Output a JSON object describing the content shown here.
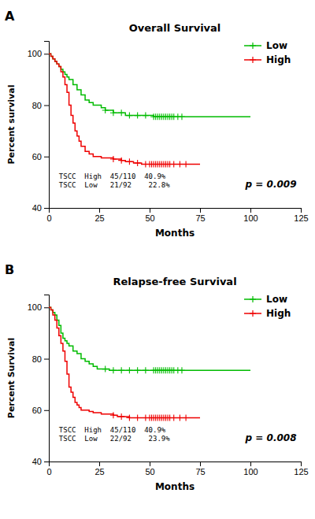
{
  "chart_data": [
    {
      "type": "step",
      "title": "Overall Survival",
      "xlabel": "Months",
      "ylabel": "Percent survival",
      "xlim": [
        0,
        125
      ],
      "ylim": [
        40,
        105
      ],
      "xticks": [
        0,
        25,
        50,
        75,
        100,
        125
      ],
      "yticks": [
        40,
        60,
        80,
        100
      ],
      "legend": "upper right",
      "annotations": [
        "A",
        "TSCC  High  45/110  40.9%",
        "TSCC  Low   21/92    22.8%",
        "p = 0.009"
      ],
      "series": [
        {
          "name": "Low",
          "color": "#00bb00",
          "marker": "+",
          "x": [
            0,
            1,
            2,
            3,
            4,
            5,
            6,
            7,
            8,
            9,
            10,
            12,
            14,
            16,
            18,
            20,
            22,
            24,
            26,
            28,
            30,
            32,
            34,
            36,
            38,
            40,
            42,
            44,
            46,
            48,
            50,
            52,
            54,
            56,
            58,
            60,
            62,
            65,
            68,
            70,
            75,
            100
          ],
          "values": [
            100,
            99,
            98,
            97,
            96,
            95,
            94,
            93,
            92,
            91,
            90,
            88,
            86,
            84,
            82,
            81,
            80,
            80,
            79,
            78,
            78,
            77,
            77,
            77,
            76,
            76,
            76,
            76,
            76,
            76,
            76,
            75.5,
            75.5,
            75.5,
            75.5,
            75.5,
            75.5,
            75.5,
            75.5,
            75.5,
            75.5,
            75.5
          ],
          "censor_x": [
            28,
            32,
            36,
            40,
            44,
            48,
            52,
            53,
            54,
            55,
            56,
            57,
            58,
            59,
            60,
            61,
            62,
            64,
            66
          ],
          "censor_y": [
            78,
            77,
            77,
            76,
            76,
            76,
            75.5,
            75.5,
            75.5,
            75.5,
            75.5,
            75.5,
            75.5,
            75.5,
            75.5,
            75.5,
            75.5,
            75.5,
            75.5
          ]
        },
        {
          "name": "High",
          "color": "#ee0000",
          "marker": "+",
          "x": [
            0,
            1,
            2,
            3,
            4,
            5,
            6,
            7,
            8,
            9,
            10,
            11,
            12,
            13,
            14,
            15,
            16,
            18,
            20,
            22,
            24,
            26,
            28,
            30,
            32,
            34,
            36,
            38,
            40,
            42,
            44,
            46,
            48,
            50,
            52,
            54,
            56,
            58,
            60,
            62,
            65,
            68,
            70,
            75
          ],
          "values": [
            100,
            99,
            98,
            97,
            96,
            95,
            93,
            91,
            88,
            85,
            80,
            76,
            73,
            70,
            68,
            66,
            64,
            62,
            61,
            60,
            60,
            59.5,
            59.5,
            59.5,
            59,
            59,
            58.5,
            58,
            58,
            57.5,
            57.5,
            57,
            57,
            57,
            57,
            57,
            57,
            57,
            57,
            57,
            57,
            57,
            57,
            57
          ],
          "censor_x": [
            32,
            36,
            40,
            44,
            48,
            50,
            51,
            52,
            53,
            54,
            55,
            56,
            57,
            58,
            59,
            60,
            62,
            65,
            68
          ],
          "censor_y": [
            59,
            58.5,
            58,
            57.5,
            57,
            57,
            57,
            57,
            57,
            57,
            57,
            57,
            57,
            57,
            57,
            57,
            57,
            57,
            57
          ]
        }
      ]
    },
    {
      "type": "step",
      "title": "Relapse-free Survival",
      "xlabel": "Months",
      "ylabel": "Percent Survival",
      "xlim": [
        0,
        125
      ],
      "ylim": [
        40,
        105
      ],
      "xticks": [
        0,
        25,
        50,
        75,
        100,
        125
      ],
      "yticks": [
        40,
        60,
        80,
        100
      ],
      "legend": "upper right",
      "annotations": [
        "B",
        "TSCC  High  45/110  40.9%",
        "TSCC  Low   22/92    23.9%",
        "p = 0.008"
      ],
      "series": [
        {
          "name": "Low",
          "color": "#00bb00",
          "marker": "+",
          "x": [
            0,
            1,
            2,
            3,
            4,
            5,
            6,
            7,
            8,
            9,
            10,
            12,
            14,
            16,
            18,
            20,
            22,
            24,
            26,
            28,
            30,
            32,
            34,
            36,
            38,
            40,
            42,
            44,
            46,
            48,
            50,
            52,
            54,
            56,
            58,
            60,
            62,
            65,
            68,
            70,
            75,
            100
          ],
          "values": [
            100,
            99,
            98,
            97,
            95,
            93,
            90,
            88,
            87,
            86,
            85,
            83,
            82,
            80,
            79,
            78,
            77,
            76,
            76,
            76,
            75.5,
            75.5,
            75.5,
            75.5,
            75.5,
            75.5,
            75.5,
            75.5,
            75.5,
            75.5,
            75.5,
            75.5,
            75.5,
            75.5,
            75.5,
            75.5,
            75.5,
            75.5,
            75.5,
            75.5,
            75.5,
            75.5
          ],
          "censor_x": [
            28,
            32,
            36,
            40,
            44,
            48,
            52,
            53,
            54,
            55,
            56,
            57,
            58,
            59,
            60,
            61,
            62,
            64,
            66
          ],
          "censor_y": [
            76,
            75.5,
            75.5,
            75.5,
            75.5,
            75.5,
            75.5,
            75.5,
            75.5,
            75.5,
            75.5,
            75.5,
            75.5,
            75.5,
            75.5,
            75.5,
            75.5,
            75.5,
            75.5
          ]
        },
        {
          "name": "High",
          "color": "#ee0000",
          "marker": "+",
          "x": [
            0,
            1,
            2,
            3,
            4,
            5,
            6,
            7,
            8,
            9,
            10,
            11,
            12,
            13,
            14,
            15,
            16,
            18,
            20,
            22,
            24,
            26,
            28,
            30,
            32,
            34,
            36,
            38,
            40,
            42,
            44,
            46,
            48,
            50,
            52,
            54,
            56,
            58,
            60,
            62,
            65,
            68,
            70,
            75
          ],
          "values": [
            100,
            99,
            97,
            95,
            92,
            89,
            86,
            83,
            79,
            74,
            69,
            67,
            65,
            63,
            62,
            61,
            60,
            60,
            59.5,
            59,
            59,
            58.5,
            58.5,
            58.5,
            58,
            57.5,
            57.5,
            57.5,
            57,
            57,
            57,
            57,
            57,
            57,
            57,
            57,
            57,
            57,
            57,
            57,
            57,
            57,
            57,
            57
          ],
          "censor_x": [
            32,
            36,
            40,
            44,
            48,
            50,
            51,
            52,
            53,
            54,
            55,
            56,
            57,
            58,
            59,
            60,
            62,
            65,
            68
          ],
          "censor_y": [
            58,
            57.5,
            57,
            57,
            57,
            57,
            57,
            57,
            57,
            57,
            57,
            57,
            57,
            57,
            57,
            57,
            57,
            57,
            57
          ]
        }
      ]
    }
  ]
}
